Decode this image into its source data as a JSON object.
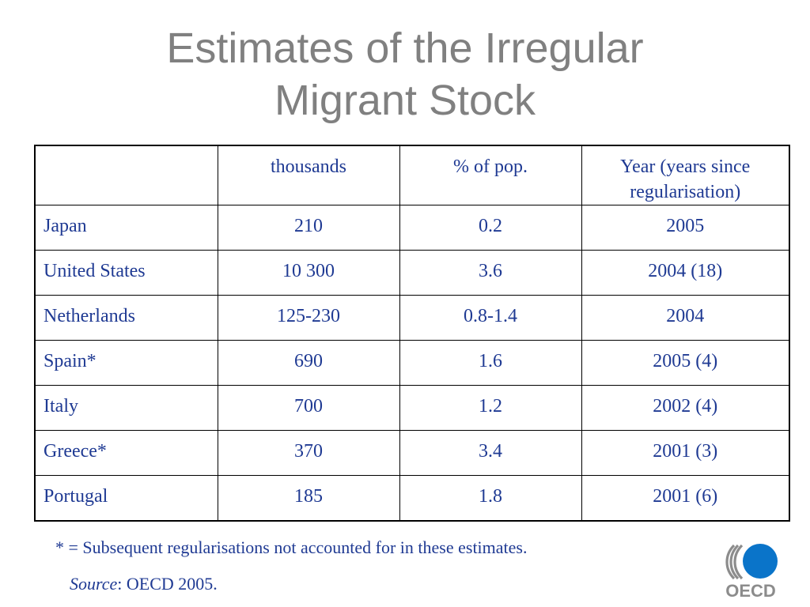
{
  "title": {
    "line1": "Estimates of the Irregular",
    "line2": "Migrant Stock"
  },
  "table": {
    "headers": [
      "",
      "thousands",
      "% of pop.",
      "Year (years since regularisation)"
    ],
    "rows": [
      [
        "Japan",
        "210",
        "0.2",
        "2005"
      ],
      [
        "United States",
        "10 300",
        "3.6",
        "2004 (18)"
      ],
      [
        "Netherlands",
        "125-230",
        "0.8-1.4",
        "2004"
      ],
      [
        "Spain*",
        "690",
        "1.6",
        "2005 (4)"
      ],
      [
        "Italy",
        "700",
        "1.2",
        "2002 (4)"
      ],
      [
        "Greece*",
        "370",
        "3.4",
        "2001 (3)"
      ],
      [
        "Portugal",
        "185",
        "1.8",
        "2001 (6)"
      ]
    ]
  },
  "footnote": "* = Subsequent regularisations not accounted for in these estimates.",
  "source": {
    "label": "Source",
    "text": ": OECD 2005."
  },
  "logo": {
    "text": "OECD",
    "name": "oecd-logo"
  },
  "colors": {
    "title": "#808080",
    "table_text": "#1f3a93",
    "logo_blue": "#0a74c9",
    "logo_gray": "#8c8c8c"
  }
}
